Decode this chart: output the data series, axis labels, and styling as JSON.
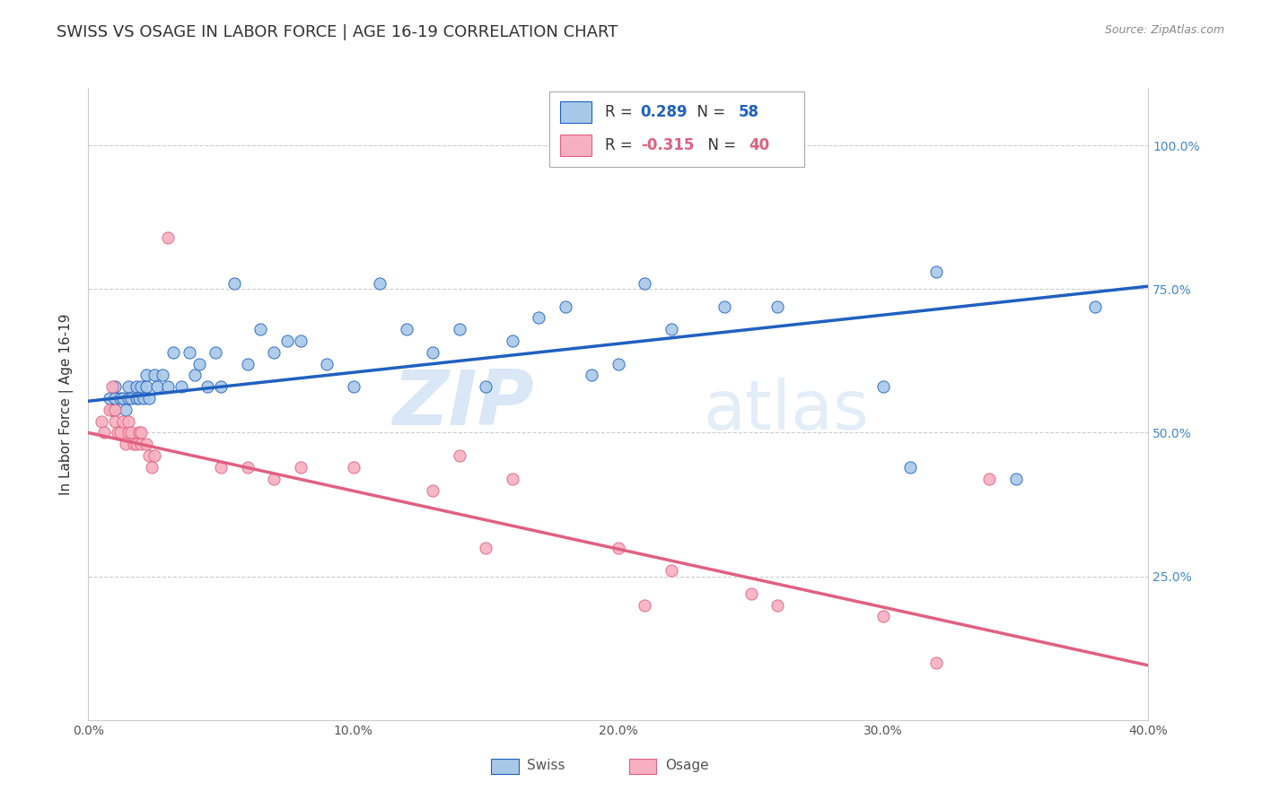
{
  "title": "SWISS VS OSAGE IN LABOR FORCE | AGE 16-19 CORRELATION CHART",
  "source": "Source: ZipAtlas.com",
  "ylabel": "In Labor Force | Age 16-19",
  "xlim": [
    0.0,
    0.4
  ],
  "ylim": [
    0.0,
    1.1
  ],
  "ytick_values": [
    0.25,
    0.5,
    0.75,
    1.0
  ],
  "xtick_values": [
    0.0,
    0.1,
    0.2,
    0.3,
    0.4
  ],
  "xtick_labels": [
    "0.0%",
    "10.0%",
    "20.0%",
    "30.0%",
    "40.0%"
  ],
  "swiss_color": "#a8c8e8",
  "osage_color": "#f8b0c0",
  "swiss_line_color": "#2060c0",
  "osage_line_color": "#e06080",
  "watermark_zip": "ZIP",
  "watermark_atlas": "atlas",
  "legend_swiss_R": "0.289",
  "legend_swiss_N": "58",
  "legend_osage_R": "-0.315",
  "legend_osage_N": "40",
  "swiss_x": [
    0.008,
    0.009,
    0.01,
    0.01,
    0.01,
    0.012,
    0.013,
    0.014,
    0.015,
    0.015,
    0.016,
    0.018,
    0.018,
    0.019,
    0.02,
    0.021,
    0.022,
    0.022,
    0.023,
    0.025,
    0.026,
    0.028,
    0.03,
    0.032,
    0.035,
    0.038,
    0.04,
    0.042,
    0.045,
    0.048,
    0.05,
    0.055,
    0.06,
    0.065,
    0.07,
    0.075,
    0.08,
    0.09,
    0.1,
    0.11,
    0.12,
    0.13,
    0.14,
    0.15,
    0.16,
    0.17,
    0.18,
    0.19,
    0.2,
    0.21,
    0.22,
    0.24,
    0.26,
    0.3,
    0.31,
    0.32,
    0.35,
    0.38
  ],
  "swiss_y": [
    0.56,
    0.54,
    0.54,
    0.56,
    0.58,
    0.56,
    0.56,
    0.54,
    0.56,
    0.58,
    0.56,
    0.58,
    0.56,
    0.56,
    0.58,
    0.56,
    0.58,
    0.6,
    0.56,
    0.6,
    0.58,
    0.6,
    0.58,
    0.64,
    0.58,
    0.64,
    0.6,
    0.62,
    0.58,
    0.64,
    0.58,
    0.76,
    0.62,
    0.68,
    0.64,
    0.66,
    0.66,
    0.62,
    0.58,
    0.76,
    0.68,
    0.64,
    0.68,
    0.58,
    0.66,
    0.7,
    0.72,
    0.6,
    0.62,
    0.76,
    0.68,
    0.72,
    0.72,
    0.58,
    0.44,
    0.78,
    0.42,
    0.72
  ],
  "osage_x": [
    0.005,
    0.006,
    0.008,
    0.009,
    0.01,
    0.01,
    0.011,
    0.012,
    0.013,
    0.014,
    0.015,
    0.015,
    0.016,
    0.017,
    0.018,
    0.019,
    0.02,
    0.02,
    0.022,
    0.023,
    0.024,
    0.025,
    0.03,
    0.05,
    0.06,
    0.07,
    0.08,
    0.1,
    0.13,
    0.14,
    0.15,
    0.16,
    0.2,
    0.21,
    0.22,
    0.25,
    0.26,
    0.3,
    0.32,
    0.34
  ],
  "osage_y": [
    0.52,
    0.5,
    0.54,
    0.58,
    0.54,
    0.52,
    0.5,
    0.5,
    0.52,
    0.48,
    0.5,
    0.52,
    0.5,
    0.48,
    0.48,
    0.5,
    0.48,
    0.5,
    0.48,
    0.46,
    0.44,
    0.46,
    0.84,
    0.44,
    0.44,
    0.42,
    0.44,
    0.44,
    0.4,
    0.46,
    0.3,
    0.42,
    0.3,
    0.2,
    0.26,
    0.22,
    0.2,
    0.18,
    0.1,
    0.42
  ],
  "swiss_trend_x": [
    0.0,
    0.4
  ],
  "swiss_trend_y": [
    0.555,
    0.755
  ],
  "osage_trend_x": [
    0.0,
    0.4
  ],
  "osage_trend_y": [
    0.5,
    0.095
  ],
  "background_color": "#ffffff",
  "grid_color": "#cccccc",
  "title_fontsize": 13,
  "axis_label_fontsize": 11,
  "tick_fontsize": 10,
  "right_tick_color": "#4488cc"
}
